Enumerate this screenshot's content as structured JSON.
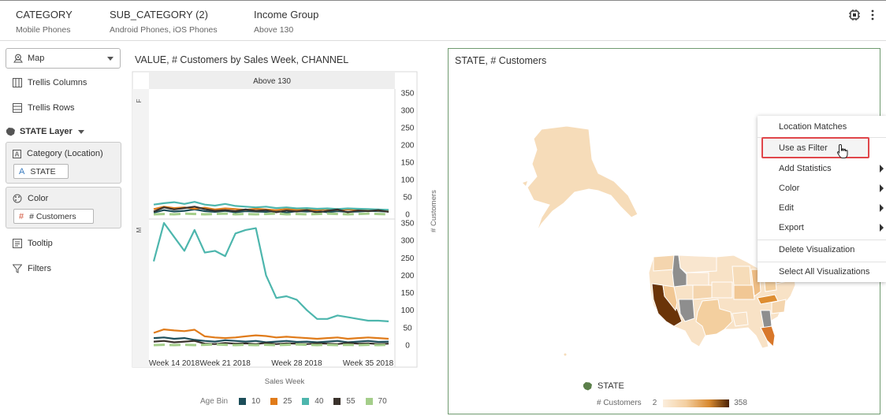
{
  "header": {
    "filters": [
      {
        "label": "CATEGORY",
        "value": "Mobile Phones"
      },
      {
        "label": "SUB_CATEGORY (2)",
        "value": "Android Phones, iOS Phones"
      },
      {
        "label": "Income Group",
        "value": "Above 130"
      }
    ],
    "icons": [
      "filter-settings-icon",
      "more-options-icon"
    ]
  },
  "grammar": {
    "viz_type": "Map",
    "trellis_columns": "Trellis Columns",
    "trellis_rows": "Trellis Rows",
    "layer": "STATE Layer",
    "category_label": "Category (Location)",
    "category_pill": "STATE",
    "color_label": "Color",
    "color_pill": "# Customers",
    "tooltip": "Tooltip",
    "filters": "Filters"
  },
  "line_chart": {
    "title": "VALUE, # Customers by Sales Week, CHANNEL",
    "column_header": "Above 130",
    "row_labels": [
      "F",
      "M"
    ],
    "y_axis_label": "# Customers",
    "x_axis_label": "Sales Week",
    "x_ticks": [
      "Week 14 2018",
      "Week 21 2018",
      "Week 28 2018",
      "Week 35 2018"
    ],
    "y_ticks": [
      350,
      300,
      250,
      200,
      150,
      100,
      50,
      0
    ],
    "legend_title": "Age Bin",
    "legend": [
      {
        "name": "10",
        "color": "#1d4e5a"
      },
      {
        "name": "25",
        "color": "#e07b1a"
      },
      {
        "name": "40",
        "color": "#4db6ad"
      },
      {
        "name": "55",
        "color": "#3a322c"
      },
      {
        "name": "70",
        "color": "#a4ce8a"
      }
    ]
  },
  "chart_data": {
    "type": "line",
    "x": [
      14,
      15,
      16,
      17,
      18,
      19,
      20,
      21,
      22,
      23,
      24,
      25,
      26,
      27,
      28,
      29,
      30,
      31,
      32,
      33,
      34,
      35,
      36,
      37
    ],
    "x_tick_labels": [
      "Week 14 2018",
      "Week 21 2018",
      "Week 28 2018",
      "Week 35 2018"
    ],
    "ylabel": "# Customers",
    "xlabel": "Sales Week",
    "ylim": [
      0,
      350
    ],
    "panels": [
      {
        "row": "F",
        "series": [
          {
            "name": "10",
            "values": [
              5,
              12,
              8,
              10,
              14,
              9,
              7,
              10,
              6,
              9,
              8,
              7,
              10,
              5,
              9,
              8,
              10,
              6,
              9,
              7,
              8,
              10,
              9,
              8
            ]
          },
          {
            "name": "25",
            "values": [
              15,
              22,
              18,
              20,
              16,
              19,
              14,
              17,
              15,
              13,
              16,
              14,
              12,
              15,
              13,
              14,
              12,
              15,
              13,
              14,
              12,
              13,
              11,
              12
            ]
          },
          {
            "name": "40",
            "values": [
              28,
              32,
              35,
              30,
              36,
              28,
              25,
              30,
              24,
              22,
              20,
              22,
              18,
              20,
              17,
              18,
              16,
              17,
              15,
              17,
              16,
              15,
              14,
              13
            ]
          },
          {
            "name": "55",
            "values": [
              8,
              20,
              14,
              18,
              22,
              15,
              10,
              12,
              9,
              14,
              10,
              12,
              6,
              11,
              8,
              12,
              5,
              10,
              14,
              6,
              11,
              9,
              12,
              7
            ]
          },
          {
            "name": "70",
            "values": [
              0,
              1,
              0,
              2,
              1,
              0,
              1,
              2,
              0,
              1,
              0,
              1,
              2,
              0,
              1,
              0,
              1,
              2,
              1,
              0,
              1,
              2,
              1,
              0
            ]
          }
        ]
      },
      {
        "row": "M",
        "series": [
          {
            "name": "10",
            "values": [
              20,
              22,
              18,
              20,
              15,
              12,
              10,
              14,
              12,
              10,
              12,
              8,
              10,
              12,
              9,
              10,
              8,
              10,
              12,
              8,
              10,
              12,
              9,
              10
            ]
          },
          {
            "name": "25",
            "values": [
              35,
              45,
              42,
              40,
              44,
              25,
              22,
              20,
              22,
              25,
              28,
              26,
              22,
              24,
              22,
              20,
              18,
              20,
              22,
              18,
              20,
              22,
              20,
              18
            ]
          },
          {
            "name": "40",
            "values": [
              240,
              350,
              310,
              270,
              330,
              265,
              270,
              255,
              320,
              330,
              335,
              200,
              135,
              140,
              130,
              100,
              75,
              75,
              85,
              80,
              75,
              70,
              70,
              68
            ]
          },
          {
            "name": "55",
            "values": [
              10,
              12,
              8,
              10,
              12,
              4,
              3,
              6,
              4,
              5,
              3,
              6,
              3,
              5,
              4,
              3,
              5,
              4,
              3,
              6,
              4,
              5,
              3,
              4
            ]
          },
          {
            "name": "70",
            "values": [
              0,
              1,
              0,
              1,
              0,
              1,
              2,
              1,
              0,
              1,
              0,
              1,
              0,
              1,
              2,
              1,
              0,
              1,
              0,
              1,
              0,
              1,
              0,
              1
            ]
          }
        ]
      }
    ]
  },
  "map": {
    "title": "STATE, # Customers",
    "legend_state": "STATE",
    "legend_color_label": "# Customers",
    "color_min": "2",
    "color_max": "358"
  },
  "context_menu": {
    "items": [
      {
        "label": "Location Matches",
        "submenu": false
      },
      {
        "label": "Use as Filter",
        "submenu": false,
        "highlighted": true
      },
      {
        "label": "Add Statistics",
        "submenu": true
      },
      {
        "label": "Color",
        "submenu": true
      },
      {
        "label": "Edit",
        "submenu": true
      },
      {
        "label": "Export",
        "submenu": true
      },
      {
        "label": "Delete Visualization",
        "submenu": false
      },
      {
        "label": "Select All Visualizations",
        "submenu": false
      }
    ]
  }
}
